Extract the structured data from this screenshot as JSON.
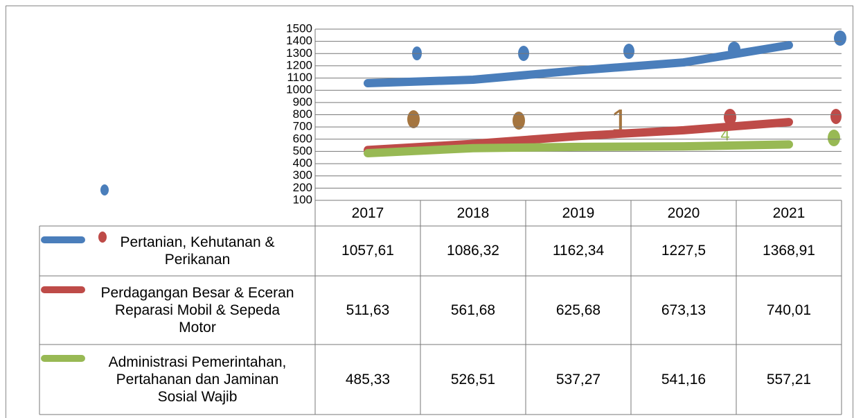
{
  "chart_data": {
    "type": "line",
    "categories": [
      "2017",
      "2018",
      "2019",
      "2020",
      "2021"
    ],
    "series": [
      {
        "name": "Pertanian, Kehutanan & Perikanan",
        "color": "#4a7ebb",
        "values": [
          1057.61,
          1086.32,
          1162.34,
          1227.5,
          1368.91
        ],
        "value_labels": [
          "1057,61",
          "1086,32",
          "1162,34",
          "1227,5",
          "1368,91"
        ]
      },
      {
        "name": "Perdagangan Besar & Eceran Reparasi Mobil & Sepeda Motor",
        "color": "#be4b48",
        "values": [
          511.63,
          561.68,
          625.68,
          673.13,
          740.01
        ],
        "value_labels": [
          "511,63",
          "561,68",
          "625,68",
          "673,13",
          "740,01"
        ]
      },
      {
        "name": "Administrasi Pemerintahan, Pertahanan dan Jaminan Sosial Wajib",
        "color": "#98b954",
        "values": [
          485.33,
          526.51,
          537.27,
          541.16,
          557.21
        ],
        "value_labels": [
          "485,33",
          "526,51",
          "537,27",
          "541,16",
          "557,21"
        ]
      }
    ],
    "ylim": [
      100,
      1500
    ],
    "yticks": [
      100,
      200,
      300,
      400,
      500,
      600,
      700,
      800,
      900,
      1000,
      1100,
      1200,
      1300,
      1400,
      1500
    ],
    "grid": true,
    "annotations": [
      "1",
      "4"
    ]
  }
}
